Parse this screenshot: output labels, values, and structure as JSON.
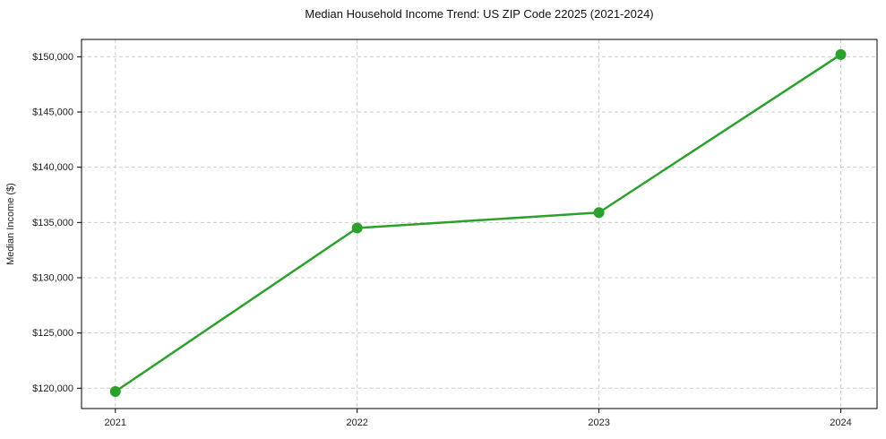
{
  "chart_data": {
    "type": "line",
    "title": "Median Household Income Trend: US ZIP Code 22025 (2021-2024)",
    "xlabel": "",
    "ylabel": "Median Income ($)",
    "categories": [
      2021,
      2022,
      2023,
      2024
    ],
    "xtick_labels": [
      "2021",
      "2022",
      "2023",
      "2024"
    ],
    "series": [
      {
        "name": "Median Household Income",
        "values": [
          119700,
          134500,
          135900,
          150200
        ]
      }
    ],
    "yticks": [
      120000,
      125000,
      130000,
      135000,
      140000,
      145000,
      150000
    ],
    "ytick_labels": [
      "$120,000",
      "$125,000",
      "$130,000",
      "$135,000",
      "$140,000",
      "$145,000",
      "$150,000"
    ],
    "ylim": [
      118160,
      151570
    ],
    "xlim": [
      2020.86,
      2024.15
    ],
    "grid": true,
    "grid_style": "dashed",
    "legend": "none",
    "colors": {
      "line": "#2ca02c",
      "marker": "#2ca02c",
      "grid": "#cccccc",
      "axis": "#000000",
      "text": "#222222",
      "background": "#ffffff"
    }
  }
}
